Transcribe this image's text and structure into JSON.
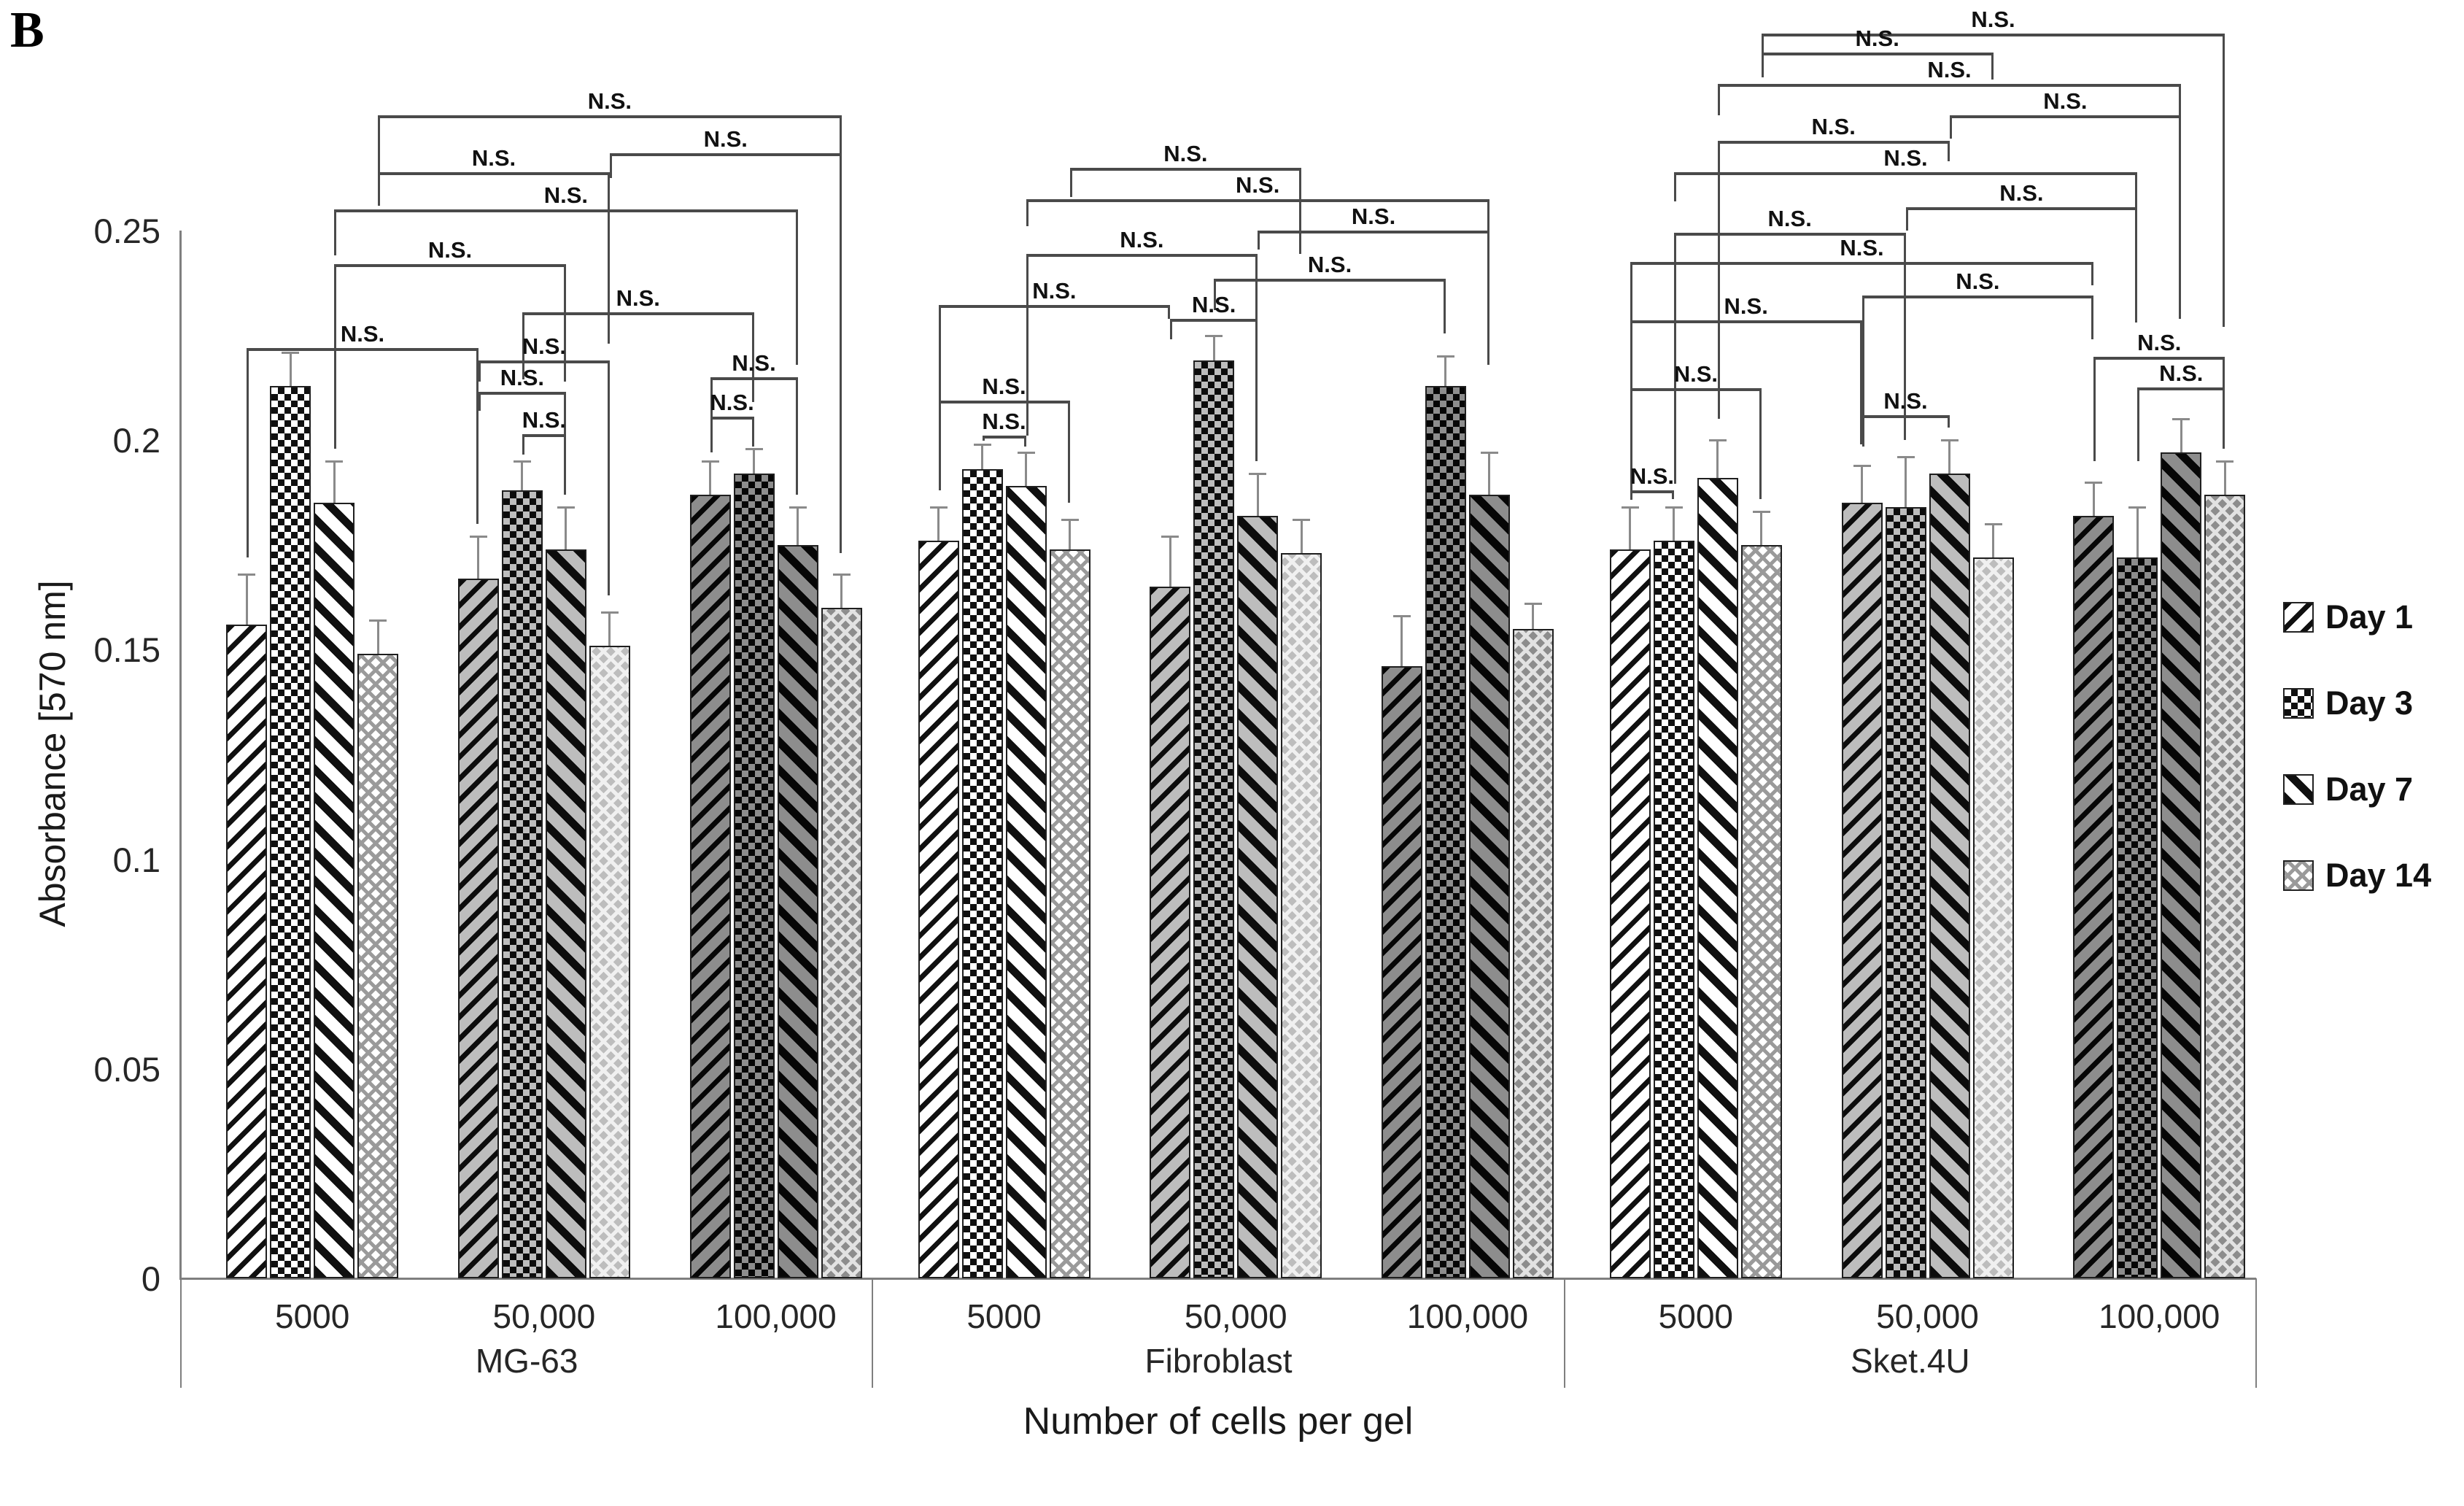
{
  "figure_label": "B",
  "axes": {
    "y_title": "Absorbance [570 nm]",
    "x_title": "Number of cells per gel",
    "y_ticks": [
      "0",
      "0.05",
      "0.1",
      "0.15",
      "0.2",
      "0.25"
    ],
    "y_tick_values": [
      0,
      0.05,
      0.1,
      0.15,
      0.2,
      0.25
    ],
    "ylim": [
      0,
      0.25
    ]
  },
  "legend": {
    "items": [
      {
        "label": "Day 1",
        "pattern": "d0"
      },
      {
        "label": "Day 3",
        "pattern": "d1"
      },
      {
        "label": "Day 7",
        "pattern": "d2"
      },
      {
        "label": "Day 14",
        "pattern": "d3"
      }
    ]
  },
  "chart_data": {
    "type": "bar",
    "title": "",
    "ylabel": "Absorbance [570 nm]",
    "xlabel": "Number of cells per gel",
    "ylim": [
      0,
      0.25
    ],
    "grid": false,
    "legend_position": "right",
    "sig_label": "N.S.",
    "series": [
      "Day 1",
      "Day 3",
      "Day 7",
      "Day 14"
    ],
    "groups": [
      {
        "name": "MG-63",
        "clusters": [
          {
            "label": "5000",
            "values": [
              0.156,
              0.213,
              0.185,
              0.149
            ],
            "errors": [
              0.012,
              0.008,
              0.01,
              0.008
            ]
          },
          {
            "label": "50,000",
            "values": [
              0.167,
              0.188,
              0.174,
              0.151
            ],
            "errors": [
              0.01,
              0.007,
              0.01,
              0.008
            ]
          },
          {
            "label": "100,000",
            "values": [
              0.187,
              0.192,
              0.175,
              0.16
            ],
            "errors": [
              0.008,
              0.006,
              0.009,
              0.008
            ]
          }
        ],
        "brackets": [
          [
            4,
            12,
            0.2775,
            0.256,
            0.173
          ],
          [
            8,
            12,
            0.2685,
            0.2625,
            0.19
          ],
          [
            4,
            8,
            0.264,
            0.2565,
            0.223
          ],
          [
            3,
            11,
            0.255,
            0.244,
            0.218
          ],
          [
            3,
            7,
            0.242,
            0.198,
            0.214
          ],
          [
            6,
            10,
            0.2305,
            0.2145,
            0.209
          ],
          [
            1,
            5,
            0.222,
            0.172,
            0.18
          ],
          [
            5,
            8,
            0.219,
            0.214,
            0.163
          ],
          [
            5,
            7,
            0.2115,
            0.207,
            0.193
          ],
          [
            6,
            7,
            0.2015,
            0.1965,
            0.187
          ],
          [
            9,
            11,
            0.215,
            0.197,
            0.187
          ],
          [
            9,
            10,
            0.2056,
            0.1975,
            0.1985
          ]
        ]
      },
      {
        "name": "Fibroblast",
        "clusters": [
          {
            "label": "5000",
            "values": [
              0.176,
              0.193,
              0.189,
              0.174
            ],
            "errors": [
              0.008,
              0.006,
              0.008,
              0.007
            ]
          },
          {
            "label": "50,000",
            "values": [
              0.165,
              0.219,
              0.182,
              0.173
            ],
            "errors": [
              0.012,
              0.006,
              0.01,
              0.008
            ]
          },
          {
            "label": "100,000",
            "values": [
              0.146,
              0.213,
              0.187,
              0.155
            ],
            "errors": [
              0.012,
              0.007,
              0.01,
              0.006
            ]
          }
        ],
        "brackets": [
          [
            4,
            8,
            0.265,
            0.258,
            0.2445
          ],
          [
            3,
            11,
            0.2575,
            0.251,
            0.218
          ],
          [
            7,
            11,
            0.25,
            0.2455,
            0.22
          ],
          [
            3,
            7,
            0.2445,
            0.201,
            0.229
          ],
          [
            6,
            10,
            0.2385,
            0.231,
            0.2255
          ],
          [
            1,
            5,
            0.2322,
            0.188,
            0.229
          ],
          [
            5,
            7,
            0.229,
            0.224,
            0.195
          ],
          [
            1,
            4,
            0.2094,
            0.188,
            0.185
          ],
          [
            2,
            3,
            0.2011,
            0.1998,
            0.1985
          ]
        ]
      },
      {
        "name": "Sket.4U",
        "clusters": [
          {
            "label": "5000",
            "values": [
              0.174,
              0.176,
              0.191,
              0.175
            ],
            "errors": [
              0.01,
              0.008,
              0.009,
              0.008
            ]
          },
          {
            "label": "50,000",
            "values": [
              0.185,
              0.184,
              0.192,
              0.172
            ],
            "errors": [
              0.009,
              0.012,
              0.008,
              0.008
            ]
          },
          {
            "label": "100,000",
            "values": [
              0.182,
              0.172,
              0.197,
              0.187
            ],
            "errors": [
              0.008,
              0.012,
              0.008,
              0.008
            ]
          }
        ],
        "brackets": [
          [
            4,
            12,
            0.297,
            0.2905,
            0.227
          ],
          [
            4,
            8,
            0.2925,
            0.2865,
            0.286
          ],
          [
            3,
            11,
            0.285,
            0.2775,
            0.229
          ],
          [
            7,
            11,
            0.2775,
            0.272,
            0.23
          ],
          [
            3,
            7,
            0.2715,
            0.205,
            0.2665
          ],
          [
            2,
            10,
            0.264,
            0.257,
            0.228
          ],
          [
            6,
            10,
            0.2555,
            0.25,
            0.229
          ],
          [
            2,
            6,
            0.2495,
            0.1895,
            0.2
          ],
          [
            1,
            9,
            0.2425,
            0.188,
            0.237
          ],
          [
            5,
            9,
            0.2345,
            0.199,
            0.224
          ],
          [
            1,
            5,
            0.2285,
            0.1885,
            0.199
          ],
          [
            9,
            12,
            0.2199,
            0.195,
            0.199
          ],
          [
            10,
            12,
            0.2126,
            0.195,
            0.198
          ],
          [
            1,
            4,
            0.2124,
            0.1895,
            0.186
          ],
          [
            5,
            7,
            0.206,
            0.1985,
            0.203
          ],
          [
            1,
            2,
            0.188,
            0.1858,
            0.186
          ]
        ]
      }
    ],
    "colors": {
      "axis": "#7f7f7f",
      "bracket": "#4a4a4a",
      "error_bar": "#8a8a8a",
      "text": "#1a1a1a",
      "cluster_tints": [
        "#ffffff",
        "#bdbdbd",
        "#8d8d8d"
      ]
    }
  }
}
